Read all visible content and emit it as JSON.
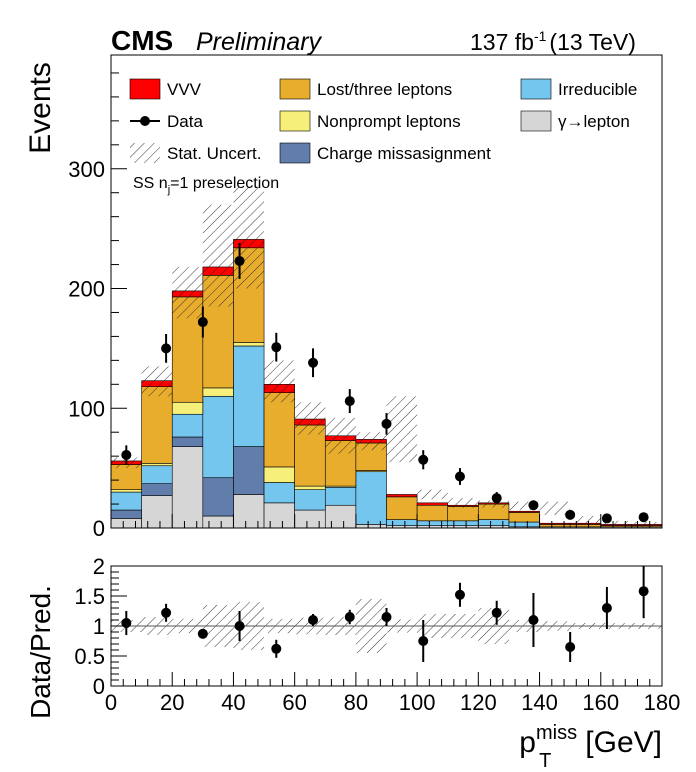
{
  "header": {
    "experiment": "CMS",
    "status": "Preliminary",
    "lumi": "137 fb",
    "lumi_exp": "-1",
    "energy": "(13 TeV)"
  },
  "region_label_prefix": "SS n",
  "region_label_sub": "j",
  "region_label_suffix": "=1 preselection",
  "colors": {
    "VVV": "#ff0000",
    "lost": "#e9ad2e",
    "irreducible": "#74c6ef",
    "nonprompt": "#f6f07a",
    "gamma": "#d6d6d6",
    "charge": "#607dab"
  },
  "chart_data": [
    {
      "type": "bar",
      "stacked": true,
      "ylabel": "Events",
      "ylim": [
        0,
        395
      ],
      "xlim": [
        0,
        180
      ],
      "y_ticks": [
        0,
        100,
        200,
        300
      ],
      "bin_edges": [
        0,
        10,
        20,
        30,
        40,
        50,
        60,
        70,
        80,
        90,
        100,
        110,
        120,
        130,
        140,
        150,
        160,
        170,
        180
      ],
      "legend": [
        {
          "key": "VVV",
          "label": "VVV",
          "kind": "fill"
        },
        {
          "key": "lost",
          "label": "Lost/three leptons",
          "kind": "fill"
        },
        {
          "key": "irreducible",
          "label": "Irreducible",
          "kind": "fill"
        },
        {
          "key": "data",
          "label": "Data",
          "kind": "marker"
        },
        {
          "key": "nonprompt",
          "label": "Nonprompt leptons",
          "kind": "fill"
        },
        {
          "key": "gamma",
          "label": "γ→lepton",
          "kind": "fill"
        },
        {
          "key": "stat",
          "label": "Stat. Uncert.",
          "kind": "hatch"
        },
        {
          "key": "charge",
          "label": "Charge missasignment",
          "kind": "fill"
        }
      ],
      "series": [
        {
          "name": "γ→lepton",
          "key": "gamma",
          "values": [
            8,
            27,
            68,
            10,
            28,
            21,
            15,
            19,
            3,
            2,
            2,
            2,
            2,
            1,
            1,
            1,
            1,
            1
          ]
        },
        {
          "name": "Charge missasignment",
          "key": "charge",
          "values": [
            7,
            10,
            8,
            32,
            40,
            0,
            0,
            0,
            0,
            0,
            0,
            0,
            0,
            0,
            0,
            0,
            0,
            0
          ]
        },
        {
          "name": "Irreducible",
          "key": "irreducible",
          "values": [
            15,
            15,
            19,
            68,
            84,
            17,
            17,
            15,
            44,
            5,
            4,
            4,
            5,
            4,
            0,
            0,
            0,
            0
          ]
        },
        {
          "name": "Nonprompt leptons",
          "key": "nonprompt",
          "values": [
            2,
            2,
            10,
            7,
            3,
            13,
            3,
            1,
            1,
            0,
            0,
            0,
            0,
            0,
            0,
            0,
            0,
            0
          ]
        },
        {
          "name": "Lost/three leptons",
          "key": "lost",
          "values": [
            21,
            64,
            88,
            94,
            79,
            62,
            51,
            38,
            23,
            19,
            13,
            12,
            13,
            8,
            2,
            2,
            1,
            1
          ]
        },
        {
          "name": "VVV",
          "key": "VVV",
          "values": [
            3,
            5,
            5,
            7,
            7,
            7,
            5,
            4,
            3,
            2,
            2,
            1,
            1,
            1,
            1,
            1,
            1,
            1
          ]
        }
      ],
      "stat_uncert": {
        "up": [
          59,
          135,
          218,
          270,
          285,
          140,
          105,
          92,
          80,
          110,
          32,
          25,
          23,
          22,
          22,
          10,
          6,
          5
        ],
        "down": [
          50,
          110,
          175,
          185,
          200,
          105,
          78,
          62,
          65,
          55,
          24,
          17,
          17,
          15,
          11,
          4,
          2,
          1
        ]
      },
      "data": {
        "x": [
          5,
          18,
          30,
          42,
          54,
          66,
          78,
          90,
          102,
          114,
          126,
          138,
          150,
          162,
          174
        ],
        "y": [
          61,
          150,
          172,
          223,
          151,
          138,
          106,
          87,
          57,
          43,
          25,
          19,
          11,
          8,
          9
        ],
        "err": [
          8,
          12,
          13,
          15,
          12,
          12,
          10,
          9,
          8,
          7,
          5,
          4,
          3,
          3,
          3
        ]
      }
    },
    {
      "type": "scatter",
      "ylabel": "Data/Pred.",
      "xlabel_main": "p",
      "xlabel_sup": "miss",
      "xlabel_sub": "T",
      "xlabel_unit": "[GeV]",
      "xlim": [
        0,
        180
      ],
      "ylim": [
        0,
        2
      ],
      "y_ticks": [
        0,
        0.5,
        1,
        1.5,
        2
      ],
      "y_tick_labels": [
        "0",
        "0.5",
        "1",
        "1.5",
        "2"
      ],
      "x_ticks": [
        0,
        20,
        40,
        60,
        80,
        100,
        120,
        140,
        160,
        180
      ],
      "x": [
        5,
        18,
        30,
        42,
        54,
        66,
        78,
        90,
        102,
        114,
        126,
        138,
        150,
        162,
        174
      ],
      "y": [
        1.05,
        1.22,
        0.87,
        1.0,
        0.62,
        1.1,
        1.15,
        1.15,
        0.75,
        1.52,
        1.22,
        1.1,
        0.65,
        1.3,
        1.58
      ],
      "err": [
        0.2,
        0.15,
        0.07,
        0.25,
        0.15,
        0.1,
        0.12,
        0.15,
        0.35,
        0.2,
        0.2,
        0.45,
        0.25,
        0.35,
        0.45
      ],
      "band_half_width": [
        0.1,
        0.15,
        0.12,
        0.35,
        0.4,
        0.12,
        0.14,
        0.15,
        0.45,
        0.11,
        0.2,
        0.2,
        0.3,
        0.1,
        0.08,
        0.05,
        0.05,
        0.05
      ]
    }
  ]
}
